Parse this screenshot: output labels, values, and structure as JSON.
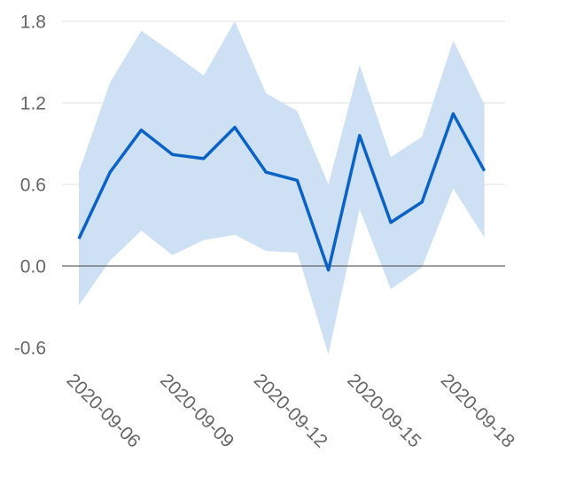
{
  "chart_data": {
    "type": "area",
    "title": "",
    "xlabel": "",
    "ylabel": "",
    "x": [
      "2020-09-06",
      "2020-09-07",
      "2020-09-08",
      "2020-09-09",
      "2020-09-10",
      "2020-09-11",
      "2020-09-12",
      "2020-09-13",
      "2020-09-14",
      "2020-09-15",
      "2020-09-16",
      "2020-09-17",
      "2020-09-18",
      "2020-09-19"
    ],
    "xticks": [
      "2020-09-06",
      "2020-09-09",
      "2020-09-12",
      "2020-09-15",
      "2020-09-18"
    ],
    "yticks": [
      "1.8",
      "1.2",
      "0.6",
      "0.0",
      "-0.6"
    ],
    "ylim": [
      -0.6,
      1.8
    ],
    "grid": true,
    "series": [
      {
        "kind": "line",
        "color": "#0a62c4",
        "values": [
          0.2,
          0.69,
          1.0,
          0.82,
          0.79,
          1.02,
          0.69,
          0.63,
          -0.03,
          0.96,
          0.32,
          0.47,
          1.12,
          0.7
        ]
      },
      {
        "kind": "band",
        "color": "#cde0f4",
        "upper": [
          0.69,
          1.35,
          1.73,
          1.57,
          1.4,
          1.8,
          1.27,
          1.14,
          0.6,
          1.48,
          0.8,
          0.95,
          1.66,
          1.19
        ],
        "lower": [
          -0.29,
          0.04,
          0.26,
          0.08,
          0.19,
          0.23,
          0.11,
          0.1,
          -0.65,
          0.42,
          -0.17,
          -0.01,
          0.57,
          0.21
        ]
      }
    ]
  }
}
